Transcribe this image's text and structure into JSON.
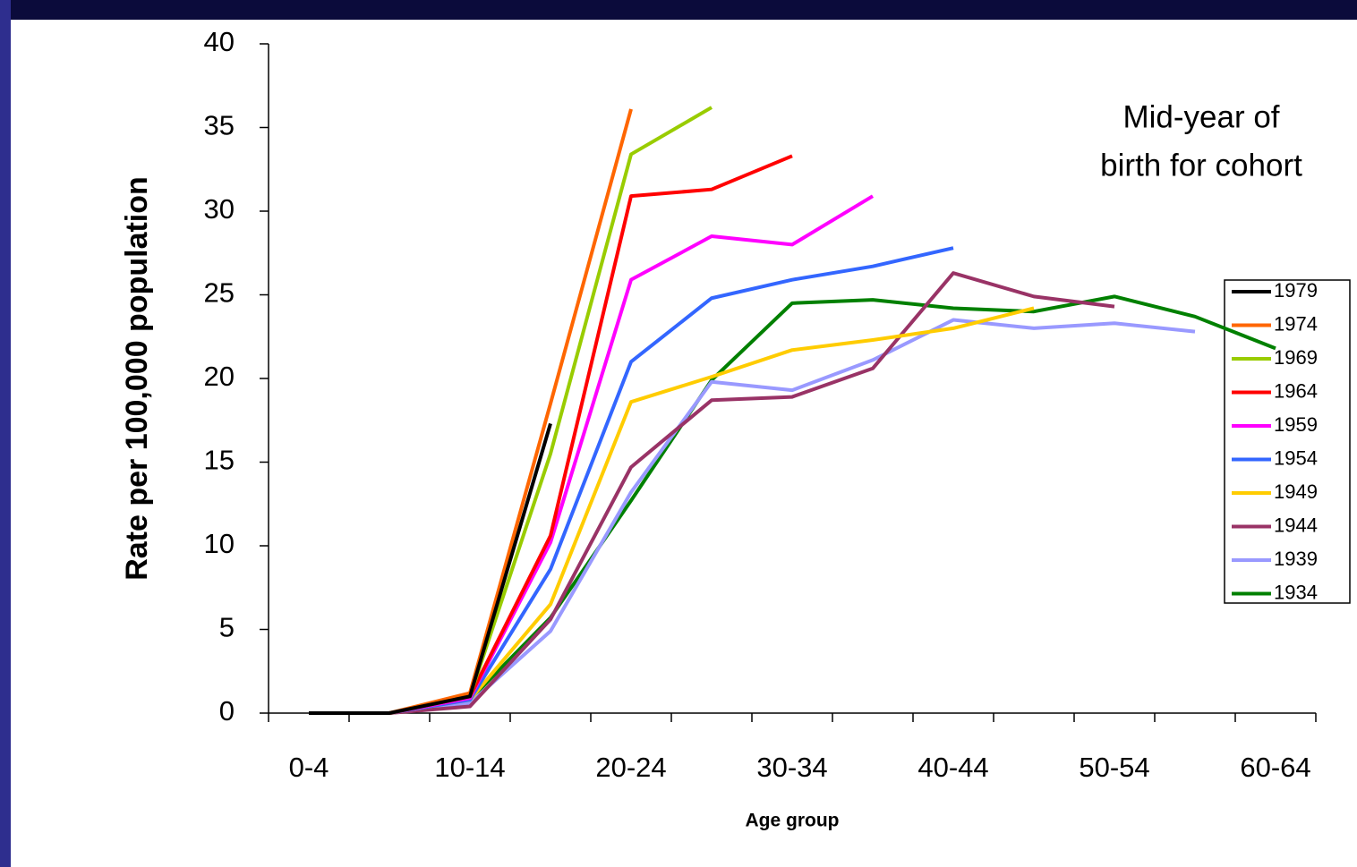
{
  "chart_data": {
    "type": "line",
    "y_label": "Rate per 100,000 population",
    "x_label": "Age group",
    "annotation": [
      "Mid-year of",
      "birth for cohort"
    ],
    "categories": [
      "0-4",
      null,
      "10-14",
      null,
      "20-24",
      null,
      "30-34",
      null,
      "40-44",
      null,
      "50-54",
      null,
      "60-64"
    ],
    "ylim": [
      0,
      40
    ],
    "yticks": [
      0,
      5,
      10,
      15,
      20,
      25,
      30,
      35,
      40
    ],
    "legend_position": "right",
    "series": [
      {
        "name": "1979",
        "color": "#000000",
        "values": [
          0,
          0,
          1.0,
          17.3,
          null,
          null,
          null,
          null,
          null,
          null,
          null,
          null,
          null
        ]
      },
      {
        "name": "1974",
        "color": "#ff6600",
        "values": [
          0,
          0,
          1.2,
          18.5,
          36.1,
          null,
          null,
          null,
          null,
          null,
          null,
          null,
          null
        ]
      },
      {
        "name": "1969",
        "color": "#99cc00",
        "values": [
          0,
          0,
          1.0,
          15.5,
          33.4,
          36.2,
          null,
          null,
          null,
          null,
          null,
          null,
          null
        ]
      },
      {
        "name": "1964",
        "color": "#ff0000",
        "values": [
          0,
          0,
          1.0,
          10.6,
          30.9,
          31.3,
          33.3,
          null,
          null,
          null,
          null,
          null,
          null
        ]
      },
      {
        "name": "1959",
        "color": "#ff00ff",
        "values": [
          0,
          0,
          0.9,
          10.2,
          25.9,
          28.5,
          28.0,
          30.9,
          null,
          null,
          null,
          null,
          null
        ]
      },
      {
        "name": "1954",
        "color": "#3366ff",
        "values": [
          0,
          0,
          0.8,
          8.6,
          21.0,
          24.8,
          25.9,
          26.7,
          27.8,
          null,
          null,
          null,
          null
        ]
      },
      {
        "name": "1949",
        "color": "#ffcc00",
        "values": [
          0,
          0,
          0.8,
          6.5,
          18.6,
          20.1,
          21.7,
          22.3,
          23.0,
          24.2,
          null,
          null,
          null
        ]
      },
      {
        "name": "1944",
        "color": "#993366",
        "values": [
          0,
          0,
          0.4,
          5.6,
          14.7,
          18.7,
          18.9,
          20.6,
          26.3,
          24.9,
          24.3,
          null,
          null
        ]
      },
      {
        "name": "1939",
        "color": "#9999ff",
        "values": [
          0,
          0,
          0.6,
          4.9,
          13.2,
          19.8,
          19.3,
          21.1,
          23.5,
          23.0,
          23.3,
          22.8,
          null
        ]
      },
      {
        "name": "1934",
        "color": "#008000",
        "values": [
          0,
          0,
          0.8,
          5.7,
          12.7,
          19.9,
          24.5,
          24.7,
          24.2,
          24.0,
          24.9,
          23.7,
          21.8
        ]
      }
    ]
  }
}
